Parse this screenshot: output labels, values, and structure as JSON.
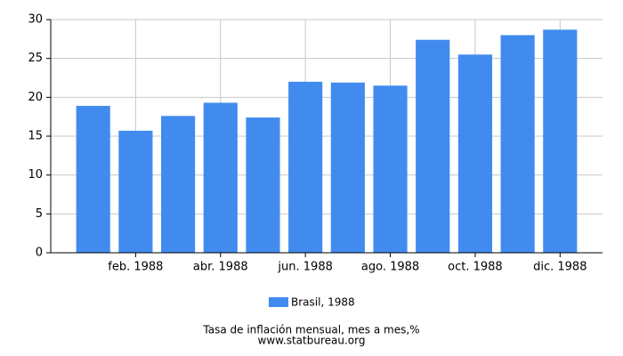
{
  "chart_data": {
    "type": "bar",
    "title": "Tasa de inflación mensual, mes a mes,%",
    "source": "www.statbureau.org",
    "categories": [
      null,
      "feb. 1988",
      null,
      "abr. 1988",
      null,
      "jun. 1988",
      null,
      "ago. 1988",
      null,
      "oct. 1988",
      null,
      "dic. 1988"
    ],
    "series": [
      {
        "name": "Brasil, 1988",
        "color": "#418bef",
        "values": [
          18.9,
          15.7,
          17.6,
          19.3,
          17.4,
          22.0,
          21.9,
          21.5,
          27.4,
          25.5,
          28.0,
          28.7
        ]
      }
    ],
    "ylim": [
      0,
      30
    ],
    "yticks": [
      0,
      5,
      10,
      15,
      20,
      25,
      30
    ],
    "grid": true,
    "legend": "bottom"
  }
}
